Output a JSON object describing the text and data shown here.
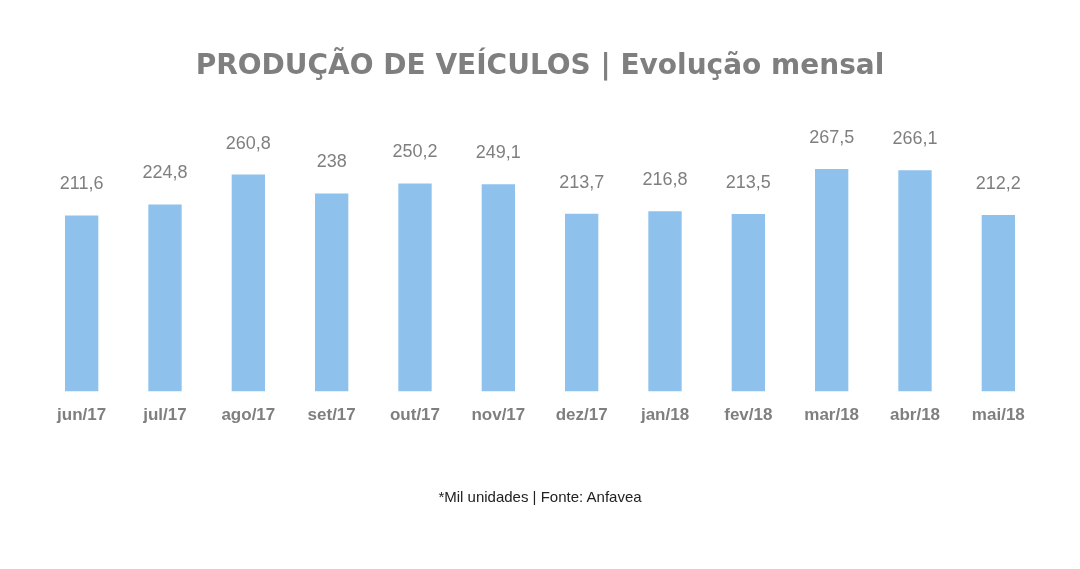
{
  "chart_data": {
    "type": "bar",
    "title": "PRODUÇÃO DE VEÍCULOS | Evolução mensal",
    "categories": [
      "jun/17",
      "jul/17",
      "ago/17",
      "set/17",
      "out/17",
      "nov/17",
      "dez/17",
      "jan/18",
      "fev/18",
      "mar/18",
      "abr/18",
      "mai/18"
    ],
    "values": [
      211.6,
      224.8,
      260.8,
      238,
      250.2,
      249.1,
      213.7,
      216.8,
      213.5,
      267.5,
      266.1,
      212.2
    ],
    "color": "#8ec2ec",
    "value_labels": [
      "211,6",
      "224,8",
      "260,8",
      "238",
      "250,2",
      "249,1",
      "213,7",
      "216,8",
      "213,5",
      "267,5",
      "266,1",
      "212,2"
    ],
    "grid": false,
    "legend": false,
    "annotations": [
      "*Mil unidades  | Fonte: Anfavea"
    ]
  }
}
